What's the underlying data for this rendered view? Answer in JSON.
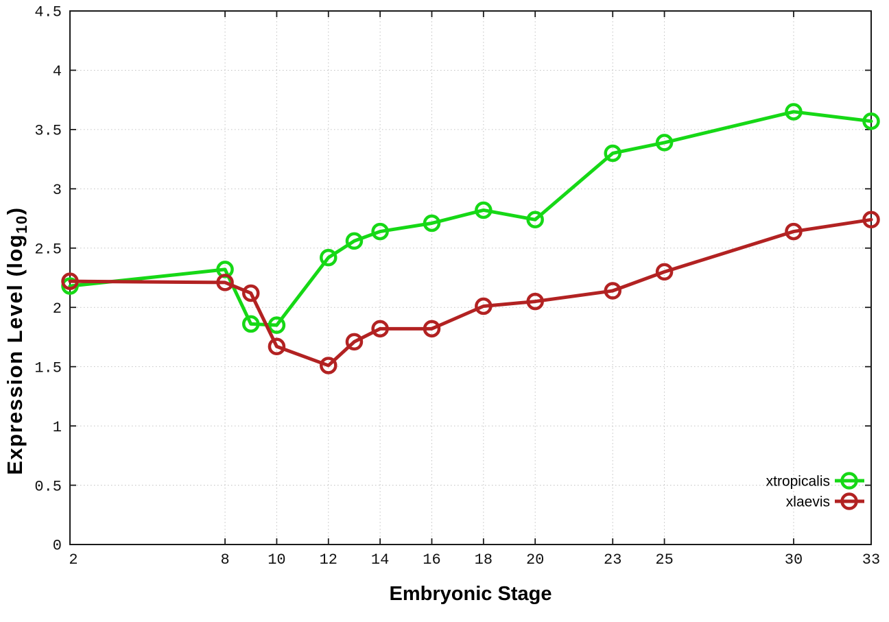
{
  "chart_data": {
    "type": "line",
    "title": "",
    "xlabel": "Embryonic Stage",
    "ylabel": "Expression Level (log10)",
    "ylabel_parts": {
      "pre": "Expression Level (log",
      "sub": "10",
      "post": ")"
    },
    "xlim": [
      2,
      33
    ],
    "ylim": [
      0,
      4.5
    ],
    "grid": true,
    "legend_position": "bottom-right",
    "marker": "open-circle",
    "background_color": "#ffffff",
    "grid_color": "#c2c2c2",
    "axis_color": "#1a1a1a",
    "xticks": {
      "values": [
        2,
        8,
        10,
        12,
        14,
        16,
        18,
        20,
        23,
        25,
        30,
        33
      ],
      "labels": [
        "2",
        "8",
        "10",
        "12",
        "14",
        "16",
        "18",
        "20",
        "23",
        "25",
        "30",
        "33"
      ]
    },
    "yticks": {
      "values": [
        0,
        0.5,
        1,
        1.5,
        2,
        2.5,
        3,
        3.5,
        4,
        4.5
      ],
      "labels": [
        "0",
        "0.5",
        "1",
        "1.5",
        "2",
        "2.5",
        "3",
        "3.5",
        "4",
        "4.5"
      ]
    },
    "x": [
      2,
      8,
      9,
      10,
      12,
      13,
      14,
      16,
      18,
      20,
      23,
      25,
      30,
      33
    ],
    "series": [
      {
        "name": "xtropicalis",
        "color": "#16d816",
        "values": [
          2.18,
          2.32,
          1.86,
          1.85,
          2.42,
          2.56,
          2.64,
          2.71,
          2.82,
          2.74,
          3.3,
          3.39,
          3.65,
          3.57
        ]
      },
      {
        "name": "xlaevis",
        "color": "#b22222",
        "values": [
          2.22,
          2.21,
          2.12,
          1.67,
          1.51,
          1.71,
          1.82,
          1.82,
          2.01,
          2.05,
          2.14,
          2.3,
          2.64,
          2.74
        ]
      }
    ]
  }
}
